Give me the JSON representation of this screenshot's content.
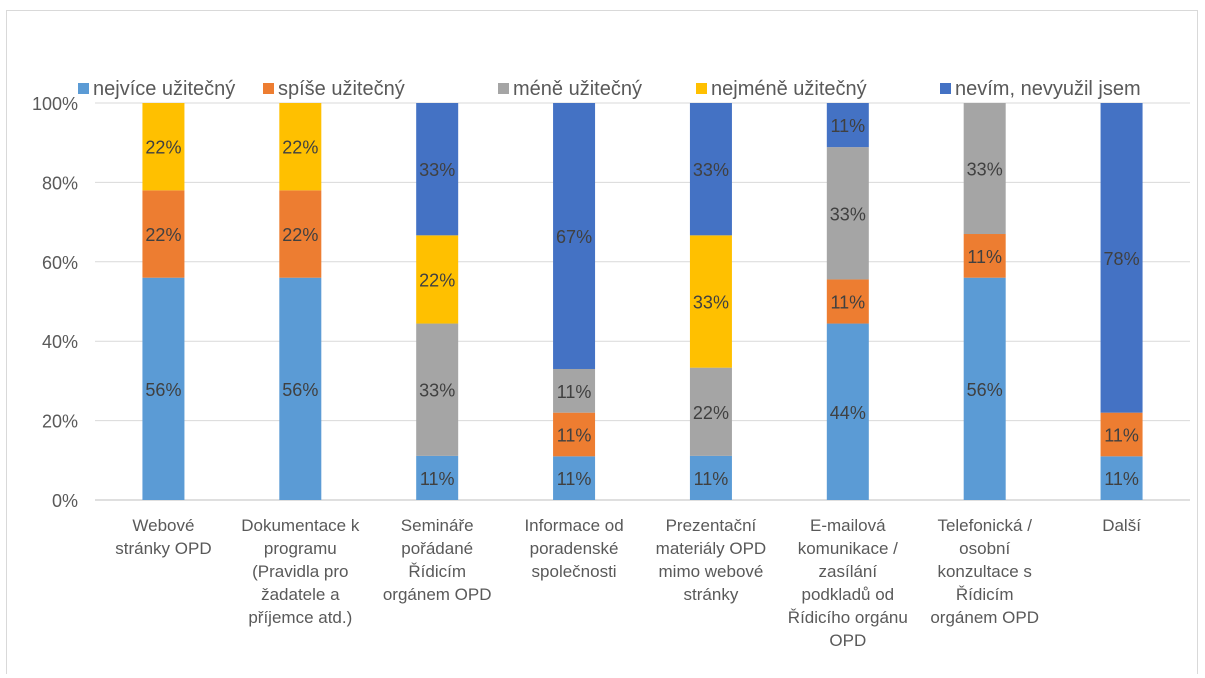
{
  "chart_data": {
    "type": "bar",
    "stacked": true,
    "percent": true,
    "categories": [
      [
        "Webové",
        "stránky OPD"
      ],
      [
        "Dokumentace k",
        "programu",
        "(Pravidla pro",
        "žadatele a",
        "příjemce atd.)"
      ],
      [
        "Semináře",
        "pořádané",
        "Řídicím",
        "orgánem OPD"
      ],
      [
        "Informace od",
        "poradenské",
        "společnosti"
      ],
      [
        "Prezentační",
        "materiály OPD",
        "mimo webové",
        "stránky"
      ],
      [
        "E-mailová",
        "komunikace /",
        "zasílání",
        "podkladů od",
        "Řídicího orgánu",
        "OPD"
      ],
      [
        "Telefonická /",
        "osobní",
        "konzultace s",
        "Řídicím",
        "orgánem OPD"
      ],
      [
        "Další"
      ]
    ],
    "series": [
      {
        "name": "nejvíce užitečný",
        "color": "#5b9bd5",
        "values": [
          56,
          56,
          11,
          11,
          11,
          44,
          56,
          11
        ]
      },
      {
        "name": "spíše užitečný",
        "color": "#ed7d31",
        "values": [
          22,
          22,
          0,
          11,
          0,
          11,
          11,
          11
        ]
      },
      {
        "name": "méně užitečný",
        "color": "#a5a5a5",
        "values": [
          0,
          0,
          33,
          11,
          22,
          33,
          33,
          0
        ]
      },
      {
        "name": "nejméně užitečný",
        "color": "#ffc000",
        "values": [
          22,
          22,
          22,
          0,
          33,
          0,
          0,
          0
        ]
      },
      {
        "name": "nevím, nevyužil jsem",
        "color": "#4472c4",
        "values": [
          0,
          0,
          33,
          67,
          33,
          11,
          0,
          78
        ]
      }
    ],
    "yticks": [
      "0%",
      "20%",
      "40%",
      "60%",
      "80%",
      "100%"
    ],
    "ylim": [
      0,
      100
    ],
    "grid": true,
    "legend_position": "top"
  }
}
